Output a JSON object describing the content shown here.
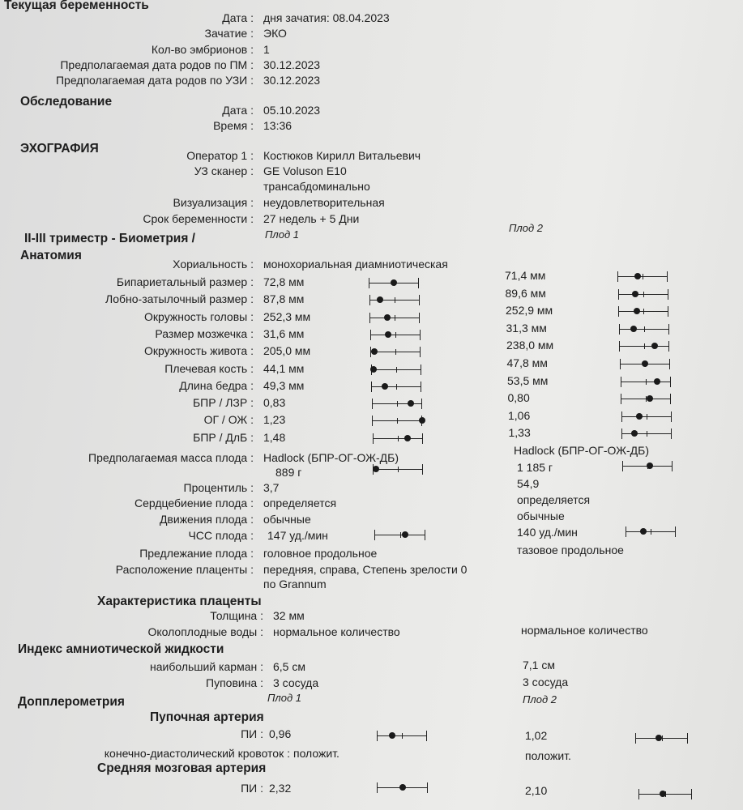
{
  "current": {
    "title": "Текущая беременность",
    "rows": [
      {
        "label": "Дата :",
        "value": "дня зачатия: 08.04.2023"
      },
      {
        "label": "Зачатие :",
        "value": "ЭКО"
      },
      {
        "label": "Кол-во эмбрионов :",
        "value": "1"
      },
      {
        "label": "Предполагаемая дата родов по ПМ :",
        "value": "30.12.2023"
      },
      {
        "label": "Предполагаемая дата родов по УЗИ :",
        "value": "30.12.2023"
      }
    ]
  },
  "exam": {
    "title": "Обследование",
    "rows": [
      {
        "label": "Дата :",
        "value": "05.10.2023"
      },
      {
        "label": "Время :",
        "value": "13:36"
      }
    ]
  },
  "echo": {
    "title": "ЭХОГРАФИЯ",
    "rows": [
      {
        "label": "Оператор 1 :",
        "value": "Костюков Кирилл Витальевич"
      },
      {
        "label": "УЗ сканер :",
        "value": "GE Voluson E10"
      },
      {
        "label": "",
        "value": "трансабдоминально"
      },
      {
        "label": "Визуализация :",
        "value": "неудовлетворительная"
      },
      {
        "label": "Срок беременности :",
        "value": "27 недель + 5 Дни"
      }
    ],
    "fetus1": "Плод 1",
    "fetus2": "Плод 2"
  },
  "biometry": {
    "title1": "II-III триместр - Биометрия /",
    "title2": "Анатомия",
    "chorionicity_label": "Хориальность :",
    "chorionicity": "монохориальная диамниотическая",
    "rows": [
      {
        "label": "Бипариетальный размер :",
        "f1": "72,8  мм",
        "f2": "71,4  мм",
        "g1": 0.5,
        "g2": 0.4
      },
      {
        "label": "Лобно-затылочный размер :",
        "f1": "87,8  мм",
        "f2": "89,6  мм",
        "g1": 0.22,
        "g2": 0.35
      },
      {
        "label": "Окружность головы :",
        "f1": "252,3  мм",
        "f2": "252,9  мм",
        "g1": 0.36,
        "g2": 0.37
      },
      {
        "label": "Размер мозжечка :",
        "f1": "31,6  мм",
        "f2": "31,3  мм",
        "g1": 0.36,
        "g2": 0.3
      },
      {
        "label": "Окружность живота :",
        "f1": "205,0  мм",
        "f2": "238,0  мм",
        "g1": 0.08,
        "g2": 0.7
      },
      {
        "label": "Плечевая кость :",
        "f1": "44,1  мм",
        "f2": "47,8  мм",
        "g1": 0.05,
        "g2": 0.5
      },
      {
        "label": "Длина бедра :",
        "f1": "49,3  мм",
        "f2": "53,5  мм",
        "g1": 0.28,
        "g2": 0.73
      },
      {
        "label": "БПР / ЛЗР :",
        "f1": "0,83",
        "f2": "0,80",
        "g1": 0.78,
        "g2": 0.58
      },
      {
        "label": "ОГ / ОЖ :",
        "f1": "1,23",
        "f2": "1,06",
        "g1": 1.0,
        "g2": 0.36
      },
      {
        "label": "БПР / ДлБ :",
        "f1": "1,48",
        "f2": "1,33",
        "g1": 0.7,
        "g2": 0.25
      }
    ]
  },
  "mass": {
    "label": "Предполагаемая масса плода :",
    "method1": "Hadlock (БПР-ОГ-ОЖ-ДБ)",
    "method2": "Hadlock (БПР-ОГ-ОЖ-ДБ)",
    "f1": "889  г",
    "f2": "1 185  г",
    "g1": 0.07,
    "g2": 0.55
  },
  "percentile": {
    "label": "Процентиль :",
    "f1": "3,7",
    "f2": "54,9"
  },
  "heartbeat": {
    "label": "Сердцебиение плода :",
    "f1": "определяется",
    "f2": "определяется"
  },
  "movements": {
    "label": "Движения плода :",
    "f1": "обычные",
    "f2": "обычные"
  },
  "hr": {
    "label": "ЧСС плода :",
    "f1": "147  уд./мин",
    "f2": "140  уд./мин",
    "g1": 0.6,
    "g2": 0.35
  },
  "presentation": {
    "label": "Предлежание плода :",
    "f1": "головное продольное",
    "f2": "тазовое продольное"
  },
  "placenta_loc": {
    "label": "Расположение плаценты :",
    "f1": "передняя, справа, Степень зрелости 0",
    "f1b": "по Grannum"
  },
  "placenta": {
    "title": "Характеристика плаценты",
    "thickness_label": "Толщина :",
    "thickness": "32  мм",
    "fluid_label": "Околоплодные воды :",
    "f1": "нормальное количество",
    "f2": "нормальное количество"
  },
  "afi": {
    "title": "Индекс амниотической жидкости",
    "pocket_label": "наибольший карман :",
    "pocket1": "6,5  см",
    "pocket2": "7,1  см",
    "cord_label": "Пуповина :",
    "cord1": "3 сосуда",
    "cord2": "3 сосуда"
  },
  "doppler": {
    "title": "Допплерометрия",
    "fetus1": "Плод 1",
    "fetus2": "Плод 2",
    "ua_title": "Пупочная артерия",
    "ua_pi_label": "ПИ :",
    "ua_pi1": "0,96",
    "ua_pi2": "1,02",
    "ua_g1": 0.3,
    "ua_g2": 0.45,
    "edf_label": "конечно-диастолический кровоток :",
    "edf1": "положит.",
    "edf2": "положит.",
    "mca_title": "Средняя мозговая артерия",
    "mca_pi_label": "ПИ :",
    "mca_pi1": "2,32",
    "mca_pi2": "2,10",
    "mca_g1": 0.5,
    "mca_g2": 0.45
  }
}
